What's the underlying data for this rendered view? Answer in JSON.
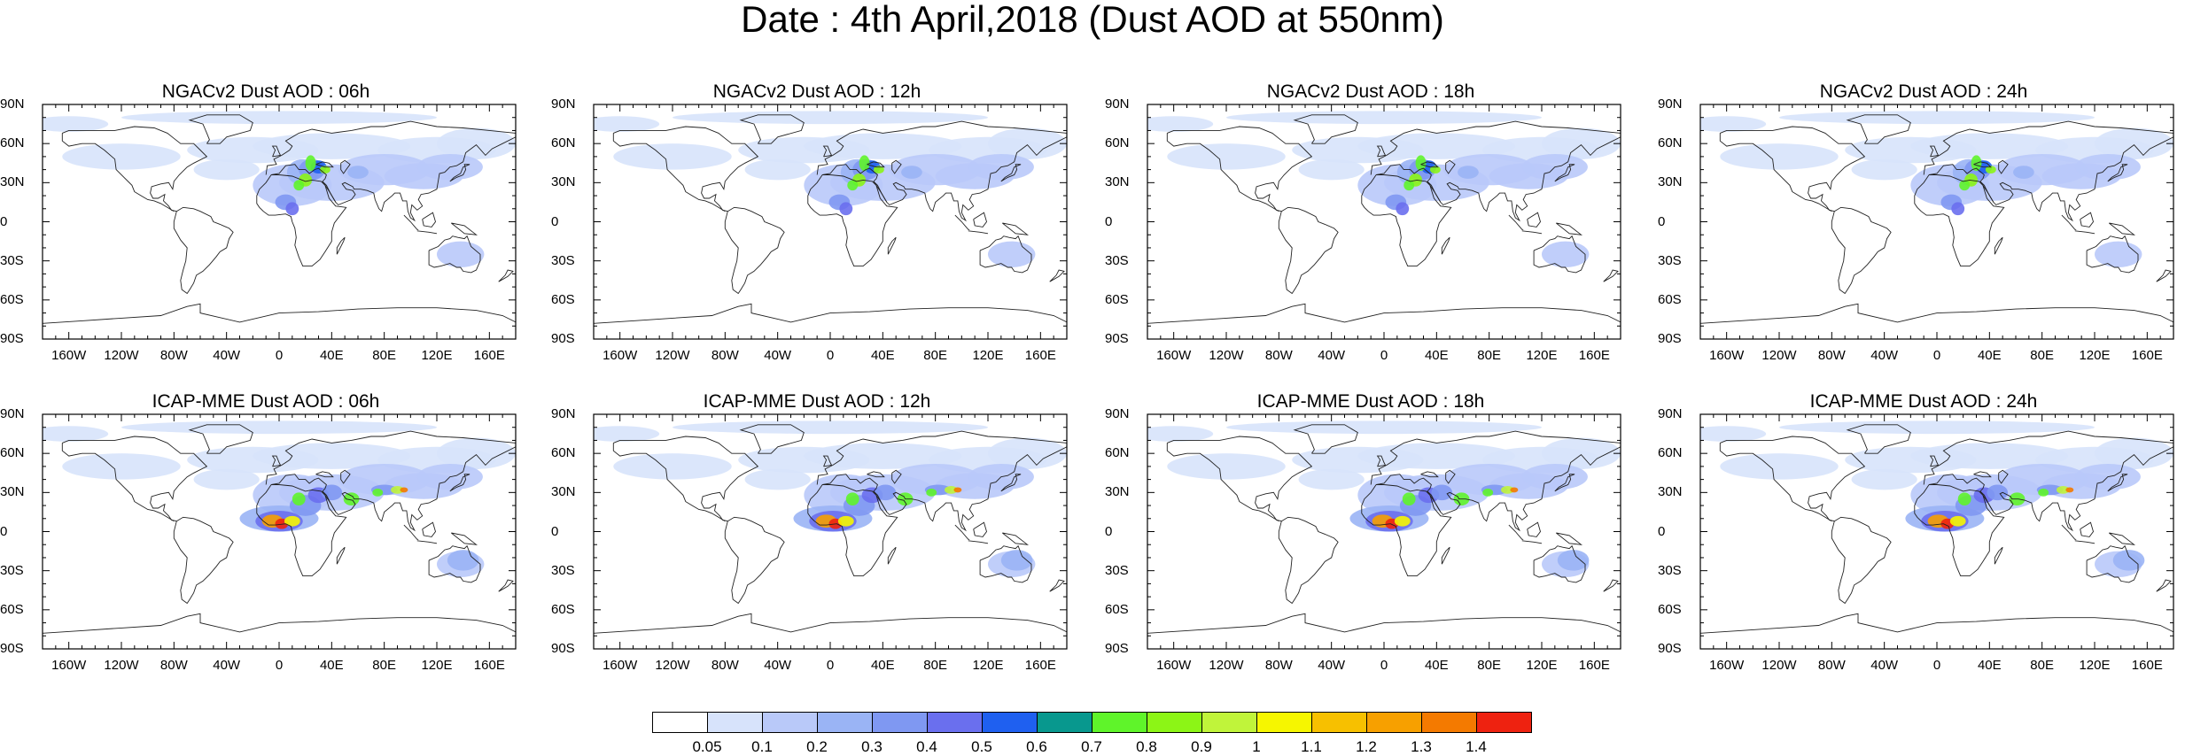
{
  "title": "Date : 4th April,2018 (Dust AOD at 550nm)",
  "panels": [
    {
      "title": "NGACv2 Dust AOD : 06h",
      "model": "NGACv2",
      "hour": "06h"
    },
    {
      "title": "NGACv2 Dust AOD : 12h",
      "model": "NGACv2",
      "hour": "12h"
    },
    {
      "title": "NGACv2 Dust AOD : 18h",
      "model": "NGACv2",
      "hour": "18h"
    },
    {
      "title": "NGACv2 Dust AOD : 24h",
      "model": "NGACv2",
      "hour": "24h"
    },
    {
      "title": "ICAP-MME Dust AOD : 06h",
      "model": "ICAP-MME",
      "hour": "06h"
    },
    {
      "title": "ICAP-MME Dust AOD : 12h",
      "model": "ICAP-MME",
      "hour": "12h"
    },
    {
      "title": "ICAP-MME Dust AOD : 18h",
      "model": "ICAP-MME",
      "hour": "18h"
    },
    {
      "title": "ICAP-MME Dust AOD : 24h",
      "model": "ICAP-MME",
      "hour": "24h"
    }
  ],
  "lat_labels": [
    "90N",
    "60N",
    "30N",
    "0",
    "30S",
    "60S",
    "90S"
  ],
  "lon_labels": [
    "160W",
    "120W",
    "80W",
    "40W",
    "0",
    "40E",
    "80E",
    "120E",
    "160E"
  ],
  "colorbar": {
    "labels": [
      "0.05",
      "0.1",
      "0.2",
      "0.3",
      "0.4",
      "0.5",
      "0.6",
      "0.7",
      "0.8",
      "0.9",
      "1",
      "1.1",
      "1.2",
      "1.3",
      "1.4"
    ],
    "colors": [
      "#ffffff",
      "#d7e3fb",
      "#b9c9f9",
      "#9ab4f5",
      "#7f98f2",
      "#6a6fee",
      "#1f60f0",
      "#08988e",
      "#5ff42a",
      "#8cf516",
      "#c0f43a",
      "#f6f600",
      "#f7c000",
      "#f7a000",
      "#f47a00",
      "#ee2210"
    ]
  }
}
